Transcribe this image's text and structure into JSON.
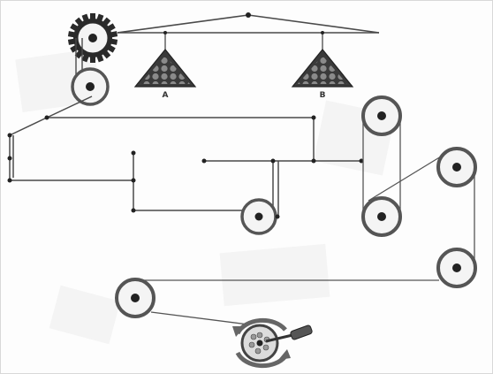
{
  "diagram": {
    "labels": {
      "weight_a": "A",
      "weight_b": "B"
    },
    "colors": {
      "line": "#4a4a4a",
      "pulley_ring": "#555555",
      "pulley_fill": "#f4f4f4",
      "hub": "#222222",
      "weight_fill": "#3a3a3a",
      "ball": "#8a8a8a",
      "background": "#fdfdfd"
    }
  }
}
